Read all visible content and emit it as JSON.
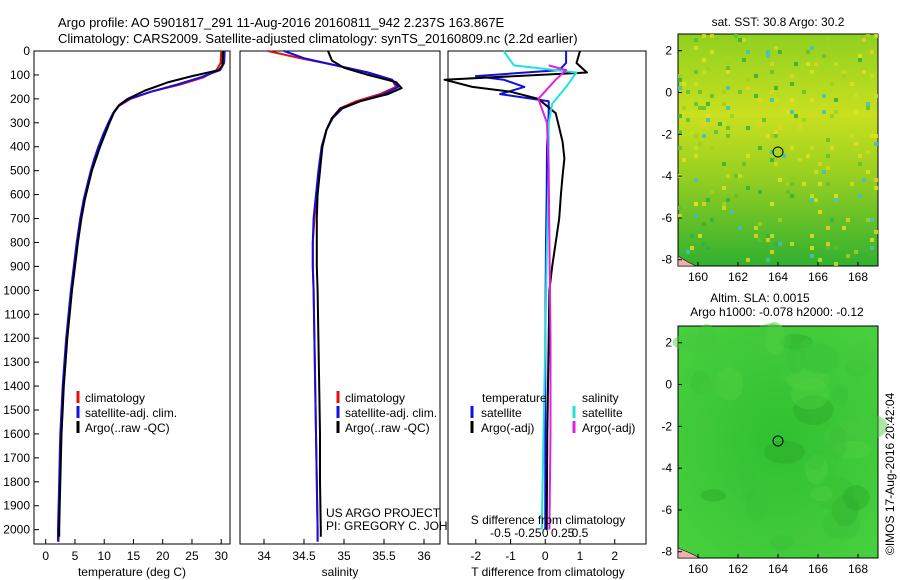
{
  "header": {
    "line1": "Argo profile: AO 5901817_291 11-Aug-2016 20160811_942 2.237S 163.867E",
    "line2": "Climatology: CARS2009. Satellite-adjusted climatology: synTS_20160809.nc (2.2d earlier)"
  },
  "colors": {
    "climatology": "#e01010",
    "satellite": "#1010e0",
    "argo": "#000000",
    "cyan": "#20e0e0",
    "magenta": "#e020e0"
  },
  "chart_data": [
    {
      "type": "line",
      "name": "temperature-profile",
      "xlabel": "temperature (deg C)",
      "xlim": [
        -2,
        31.5
      ],
      "ylim": [
        2060,
        0
      ],
      "xticks": [
        0,
        5,
        10,
        15,
        20,
        25,
        30
      ],
      "yticks": [
        0,
        100,
        200,
        300,
        400,
        500,
        600,
        700,
        800,
        900,
        1000,
        1100,
        1200,
        1300,
        1400,
        1500,
        1600,
        1700,
        1800,
        1900,
        2000
      ],
      "legend": [
        "climatology",
        "satellite-adj. clim.",
        "Argo(..raw -QC)"
      ],
      "series": [
        {
          "name": "climatology",
          "color": "climatology",
          "points": [
            [
              30.0,
              0
            ],
            [
              29.9,
              50
            ],
            [
              29.2,
              80
            ],
            [
              27,
              110
            ],
            [
              23,
              140
            ],
            [
              18,
              170
            ],
            [
              14.5,
              200
            ],
            [
              12.5,
              230
            ],
            [
              11.6,
              260
            ],
            [
              10.8,
              300
            ],
            [
              10,
              350
            ],
            [
              9.2,
              400
            ],
            [
              8.5,
              450
            ],
            [
              7.8,
              500
            ],
            [
              7.2,
              560
            ],
            [
              6.6,
              620
            ],
            [
              6.0,
              700
            ],
            [
              5.4,
              800
            ],
            [
              4.9,
              900
            ],
            [
              4.4,
              1000
            ],
            [
              4.0,
              1100
            ],
            [
              3.6,
              1200
            ],
            [
              3.3,
              1300
            ],
            [
              3.0,
              1400
            ],
            [
              2.8,
              1500
            ],
            [
              2.6,
              1600
            ],
            [
              2.5,
              1700
            ],
            [
              2.4,
              1800
            ],
            [
              2.3,
              1900
            ],
            [
              2.2,
              2000
            ],
            [
              2.2,
              2050
            ]
          ]
        },
        {
          "name": "satellite",
          "color": "satellite",
          "points": [
            [
              30.6,
              0
            ],
            [
              30.5,
              50
            ],
            [
              29.8,
              80
            ],
            [
              26.5,
              110
            ],
            [
              22.5,
              140
            ],
            [
              18,
              170
            ],
            [
              14.3,
              200
            ],
            [
              12.4,
              230
            ],
            [
              11.5,
              260
            ],
            [
              10.7,
              300
            ],
            [
              9.8,
              350
            ],
            [
              9.0,
              400
            ],
            [
              8.3,
              450
            ],
            [
              7.7,
              500
            ],
            [
              7.1,
              560
            ],
            [
              6.5,
              620
            ],
            [
              5.9,
              700
            ],
            [
              5.3,
              800
            ],
            [
              4.8,
              900
            ],
            [
              4.3,
              1000
            ],
            [
              3.9,
              1100
            ],
            [
              3.5,
              1200
            ],
            [
              3.2,
              1300
            ],
            [
              2.9,
              1400
            ],
            [
              2.7,
              1500
            ],
            [
              2.5,
              1600
            ],
            [
              2.4,
              1700
            ],
            [
              2.3,
              1800
            ],
            [
              2.2,
              1900
            ],
            [
              2.1,
              2000
            ],
            [
              2.1,
              2050
            ]
          ]
        },
        {
          "name": "argo",
          "color": "argo",
          "points": [
            [
              30.3,
              0
            ],
            [
              30.2,
              60
            ],
            [
              29.6,
              80
            ],
            [
              25,
              105
            ],
            [
              21,
              130
            ],
            [
              17,
              165
            ],
            [
              14,
              200
            ],
            [
              12.6,
              225
            ],
            [
              11.7,
              255
            ],
            [
              10.9,
              300
            ],
            [
              10.1,
              350
            ],
            [
              9.3,
              400
            ],
            [
              8.6,
              450
            ],
            [
              7.9,
              500
            ],
            [
              7.3,
              560
            ],
            [
              6.7,
              620
            ],
            [
              6.1,
              700
            ],
            [
              5.5,
              800
            ],
            [
              5.0,
              900
            ],
            [
              4.5,
              1000
            ],
            [
              4.1,
              1100
            ],
            [
              3.7,
              1200
            ],
            [
              3.4,
              1300
            ],
            [
              3.1,
              1400
            ],
            [
              2.9,
              1500
            ],
            [
              2.7,
              1600
            ],
            [
              2.6,
              1700
            ],
            [
              2.5,
              1800
            ],
            [
              2.4,
              1900
            ],
            [
              2.3,
              2000
            ],
            [
              2.3,
              2030
            ]
          ]
        }
      ]
    },
    {
      "type": "line",
      "name": "salinity-profile",
      "xlabel": "salinity",
      "xlim": [
        33.7,
        36.2
      ],
      "ylim": [
        2060,
        0
      ],
      "xticks": [
        34,
        34.5,
        35,
        35.5,
        36
      ],
      "legend": [
        "climatology",
        "satellite-adj. clim.",
        "Argo(..raw -QC)"
      ],
      "series": [
        {
          "name": "climatology",
          "color": "climatology",
          "points": [
            [
              34.05,
              0
            ],
            [
              34.45,
              30
            ],
            [
              34.9,
              60
            ],
            [
              35.3,
              90
            ],
            [
              35.6,
              120
            ],
            [
              35.65,
              150
            ],
            [
              35.45,
              180
            ],
            [
              35.15,
              210
            ],
            [
              34.95,
              240
            ],
            [
              34.85,
              280
            ],
            [
              34.78,
              330
            ],
            [
              34.73,
              400
            ],
            [
              34.69,
              500
            ],
            [
              34.66,
              600
            ],
            [
              34.63,
              700
            ],
            [
              34.61,
              800
            ],
            [
              34.61,
              900
            ],
            [
              34.62,
              1000
            ],
            [
              34.63,
              1200
            ],
            [
              34.64,
              1400
            ],
            [
              34.65,
              1600
            ],
            [
              34.66,
              1800
            ],
            [
              34.67,
              2000
            ],
            [
              34.67,
              2050
            ]
          ]
        },
        {
          "name": "satellite",
          "color": "satellite",
          "points": [
            [
              34.25,
              0
            ],
            [
              34.5,
              30
            ],
            [
              34.9,
              60
            ],
            [
              35.3,
              90
            ],
            [
              35.6,
              120
            ],
            [
              35.68,
              150
            ],
            [
              35.5,
              180
            ],
            [
              35.2,
              210
            ],
            [
              34.98,
              240
            ],
            [
              34.86,
              280
            ],
            [
              34.78,
              330
            ],
            [
              34.72,
              400
            ],
            [
              34.68,
              500
            ],
            [
              34.65,
              600
            ],
            [
              34.62,
              700
            ],
            [
              34.61,
              800
            ],
            [
              34.61,
              900
            ],
            [
              34.62,
              1000
            ],
            [
              34.63,
              1200
            ],
            [
              34.64,
              1400
            ],
            [
              34.65,
              1600
            ],
            [
              34.66,
              1800
            ],
            [
              34.67,
              2000
            ],
            [
              34.67,
              2050
            ]
          ]
        },
        {
          "name": "argo",
          "color": "argo",
          "points": [
            [
              34.8,
              0
            ],
            [
              34.85,
              40
            ],
            [
              35.0,
              70
            ],
            [
              35.3,
              100
            ],
            [
              35.65,
              130
            ],
            [
              35.72,
              155
            ],
            [
              35.55,
              180
            ],
            [
              35.2,
              210
            ],
            [
              34.96,
              240
            ],
            [
              34.85,
              280
            ],
            [
              34.78,
              330
            ],
            [
              34.73,
              400
            ],
            [
              34.7,
              500
            ],
            [
              34.67,
              600
            ],
            [
              34.66,
              700
            ],
            [
              34.66,
              800
            ],
            [
              34.66,
              900
            ],
            [
              34.67,
              1000
            ],
            [
              34.68,
              1200
            ],
            [
              34.69,
              1400
            ],
            [
              34.7,
              1600
            ],
            [
              34.7,
              1800
            ],
            [
              34.71,
              2000
            ],
            [
              34.71,
              2030
            ]
          ]
        }
      ]
    },
    {
      "type": "line",
      "name": "difference-profile",
      "xlabel": "T difference from climatology",
      "xlabel2": "S difference from climatology",
      "xlim": [
        -2.8,
        2.9
      ],
      "ylim": [
        2060,
        0
      ],
      "xticks": [
        -2,
        -1,
        0,
        1,
        2
      ],
      "sticks": [
        -0.5,
        -0.25,
        0,
        0.25,
        0.5
      ],
      "legend_temperature": {
        "title": "temperature",
        "items": [
          "satellite",
          "Argo(-adj)"
        ]
      },
      "legend_salinity": {
        "title": "salinity",
        "items": [
          "satellite",
          "Argo(-adj)"
        ]
      },
      "series": [
        {
          "name": "T satellite",
          "color": "satellite",
          "points": [
            [
              0.6,
              0
            ],
            [
              0.6,
              50
            ],
            [
              0.4,
              80
            ],
            [
              -2,
              105
            ],
            [
              -1.2,
              120
            ],
            [
              -0.6,
              150
            ],
            [
              -1.3,
              180
            ],
            [
              0.1,
              210
            ],
            [
              0.1,
              260
            ],
            [
              0.05,
              400
            ],
            [
              0.04,
              600
            ],
            [
              0.02,
              800
            ],
            [
              0.0,
              1200
            ],
            [
              0.0,
              1600
            ],
            [
              0.0,
              2000
            ]
          ]
        },
        {
          "name": "T argo",
          "color": "argo",
          "points": [
            [
              1.0,
              0
            ],
            [
              0.9,
              50
            ],
            [
              1.2,
              90
            ],
            [
              -2.9,
              120
            ],
            [
              -2.1,
              150
            ],
            [
              -1.0,
              170
            ],
            [
              -0.2,
              200
            ],
            [
              0.3,
              260
            ],
            [
              0.4,
              320
            ],
            [
              0.5,
              380
            ],
            [
              0.55,
              450
            ],
            [
              0.5,
              520
            ],
            [
              0.45,
              600
            ],
            [
              0.4,
              700
            ],
            [
              0.3,
              800
            ],
            [
              0.2,
              900
            ],
            [
              0.12,
              1000
            ],
            [
              0.1,
              1200
            ],
            [
              0.08,
              1400
            ],
            [
              0.06,
              1600
            ],
            [
              0.05,
              1800
            ],
            [
              0.04,
              2000
            ]
          ]
        },
        {
          "name": "S satellite",
          "color": "cyan",
          "points": [
            [
              -1.2,
              0
            ],
            [
              -0.9,
              60
            ],
            [
              0.3,
              80
            ],
            [
              0.9,
              90
            ],
            [
              0.6,
              150
            ],
            [
              0.2,
              220
            ],
            [
              0.1,
              300
            ],
            [
              0.1,
              500
            ],
            [
              0.05,
              800
            ],
            [
              0.0,
              1200
            ],
            [
              -0.05,
              1600
            ],
            [
              -0.1,
              2000
            ]
          ]
        },
        {
          "name": "S argo",
          "color": "magenta",
          "points": [
            [
              0.1,
              60
            ],
            [
              0.6,
              80
            ],
            [
              0.3,
              120
            ],
            [
              -0.2,
              200
            ],
            [
              0.05,
              300
            ],
            [
              0.1,
              500
            ],
            [
              0.12,
              800
            ],
            [
              0.15,
              1200
            ],
            [
              0.15,
              1600
            ],
            [
              0.12,
              2000
            ]
          ]
        }
      ]
    }
  ],
  "maps": {
    "sst": {
      "title": "sat. SST: 30.8 Argo: 30.2",
      "xticks": [
        160,
        162,
        164,
        166,
        168
      ],
      "yticks": [
        2,
        0,
        -2,
        -4,
        -6,
        -8
      ]
    },
    "sla": {
      "title1": "Altim. SLA: 0.0015",
      "title2": "Argo h1000: -0.078 h2000: -0.12",
      "xticks": [
        160,
        162,
        164,
        166,
        168
      ],
      "yticks": [
        2,
        0,
        -2,
        -4,
        -6,
        -8
      ]
    }
  },
  "credits": {
    "project": "US ARGO PROJECT",
    "pi": "PI: GREGORY C. JOHNSON",
    "stamp": "©IMOS 17-Aug-2016 20:42:04"
  }
}
